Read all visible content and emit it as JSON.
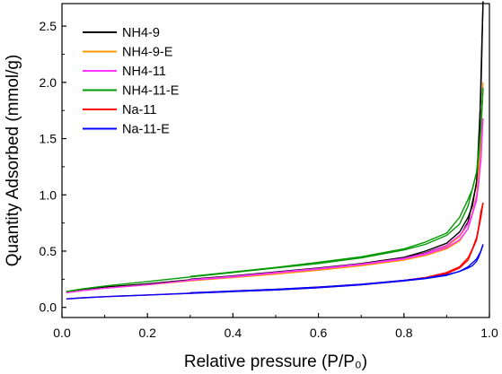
{
  "chart_data": {
    "type": "line",
    "title": "",
    "xlabel": "Relative pressure (P/P₀)",
    "ylabel": "Quantity Adsorbed (mmol/g)",
    "xlim": [
      0.0,
      1.0
    ],
    "ylim": [
      -0.09,
      2.7
    ],
    "xticks": [
      0.0,
      0.2,
      0.4,
      0.6,
      0.8,
      1.0
    ],
    "xtick_labels": [
      "0.0",
      "0.2",
      "0.4",
      "0.6",
      "0.8",
      "1.0"
    ],
    "yticks": [
      0.0,
      0.5,
      1.0,
      1.5,
      2.0,
      2.5
    ],
    "ytick_labels": [
      "0.0",
      "0.5",
      "1.0",
      "1.5",
      "2.0",
      "2.5"
    ],
    "grid": false,
    "legend_position": "top-left",
    "series": [
      {
        "name": "NH4-9",
        "color": "#000000",
        "adsorption": [
          [
            0.01,
            0.14
          ],
          [
            0.05,
            0.16
          ],
          [
            0.1,
            0.18
          ],
          [
            0.2,
            0.21
          ],
          [
            0.3,
            0.245
          ],
          [
            0.4,
            0.275
          ],
          [
            0.5,
            0.31
          ],
          [
            0.6,
            0.345
          ],
          [
            0.7,
            0.385
          ],
          [
            0.8,
            0.44
          ],
          [
            0.85,
            0.485
          ],
          [
            0.9,
            0.55
          ],
          [
            0.93,
            0.63
          ],
          [
            0.95,
            0.76
          ],
          [
            0.97,
            1.1
          ],
          [
            0.98,
            1.9
          ],
          [
            0.985,
            2.72
          ]
        ],
        "desorption": [
          [
            0.985,
            2.72
          ],
          [
            0.982,
            2.3
          ],
          [
            0.978,
            1.7
          ],
          [
            0.974,
            1.3
          ],
          [
            0.97,
            1.12
          ],
          [
            0.96,
            0.9
          ],
          [
            0.95,
            0.8
          ],
          [
            0.93,
            0.67
          ],
          [
            0.9,
            0.57
          ],
          [
            0.85,
            0.5
          ],
          [
            0.8,
            0.445
          ],
          [
            0.7,
            0.39
          ],
          [
            0.6,
            0.35
          ],
          [
            0.5,
            0.315
          ],
          [
            0.4,
            0.28
          ],
          [
            0.3,
            0.25
          ]
        ]
      },
      {
        "name": "NH4-9-E",
        "color": "#ff9900",
        "adsorption": [
          [
            0.01,
            0.13
          ],
          [
            0.05,
            0.15
          ],
          [
            0.1,
            0.17
          ],
          [
            0.2,
            0.2
          ],
          [
            0.3,
            0.235
          ],
          [
            0.4,
            0.265
          ],
          [
            0.5,
            0.295
          ],
          [
            0.6,
            0.33
          ],
          [
            0.7,
            0.37
          ],
          [
            0.8,
            0.42
          ],
          [
            0.85,
            0.46
          ],
          [
            0.9,
            0.52
          ],
          [
            0.93,
            0.59
          ],
          [
            0.95,
            0.7
          ],
          [
            0.97,
            0.98
          ],
          [
            0.98,
            1.5
          ],
          [
            0.985,
            2.0
          ]
        ],
        "desorption": [
          [
            0.985,
            2.0
          ],
          [
            0.98,
            1.55
          ],
          [
            0.975,
            1.2
          ],
          [
            0.97,
            1.0
          ],
          [
            0.96,
            0.84
          ],
          [
            0.95,
            0.74
          ],
          [
            0.93,
            0.63
          ],
          [
            0.9,
            0.54
          ],
          [
            0.85,
            0.47
          ],
          [
            0.8,
            0.425
          ],
          [
            0.7,
            0.375
          ],
          [
            0.6,
            0.335
          ],
          [
            0.5,
            0.3
          ],
          [
            0.4,
            0.27
          ],
          [
            0.3,
            0.24
          ]
        ]
      },
      {
        "name": "NH4-11",
        "color": "#ff33ff",
        "adsorption": [
          [
            0.01,
            0.13
          ],
          [
            0.05,
            0.15
          ],
          [
            0.1,
            0.17
          ],
          [
            0.2,
            0.2
          ],
          [
            0.3,
            0.24
          ],
          [
            0.4,
            0.27
          ],
          [
            0.5,
            0.305
          ],
          [
            0.6,
            0.34
          ],
          [
            0.7,
            0.38
          ],
          [
            0.8,
            0.43
          ],
          [
            0.85,
            0.47
          ],
          [
            0.9,
            0.53
          ],
          [
            0.93,
            0.6
          ],
          [
            0.95,
            0.7
          ],
          [
            0.97,
            0.95
          ],
          [
            0.98,
            1.3
          ],
          [
            0.985,
            1.68
          ]
        ],
        "desorption": [
          [
            0.985,
            1.68
          ],
          [
            0.98,
            1.35
          ],
          [
            0.975,
            1.1
          ],
          [
            0.97,
            0.98
          ],
          [
            0.96,
            0.83
          ],
          [
            0.95,
            0.74
          ],
          [
            0.93,
            0.64
          ],
          [
            0.9,
            0.55
          ],
          [
            0.85,
            0.48
          ],
          [
            0.8,
            0.435
          ],
          [
            0.7,
            0.385
          ],
          [
            0.6,
            0.345
          ],
          [
            0.5,
            0.31
          ],
          [
            0.4,
            0.275
          ],
          [
            0.3,
            0.245
          ]
        ]
      },
      {
        "name": "NH4-11-E",
        "color": "#009900",
        "adsorption": [
          [
            0.01,
            0.14
          ],
          [
            0.05,
            0.165
          ],
          [
            0.1,
            0.19
          ],
          [
            0.2,
            0.23
          ],
          [
            0.3,
            0.27
          ],
          [
            0.4,
            0.31
          ],
          [
            0.5,
            0.35
          ],
          [
            0.6,
            0.39
          ],
          [
            0.7,
            0.44
          ],
          [
            0.8,
            0.51
          ],
          [
            0.85,
            0.56
          ],
          [
            0.9,
            0.64
          ],
          [
            0.93,
            0.74
          ],
          [
            0.95,
            0.9
          ],
          [
            0.97,
            1.2
          ],
          [
            0.98,
            1.6
          ],
          [
            0.985,
            1.95
          ]
        ],
        "desorption": [
          [
            0.985,
            1.95
          ],
          [
            0.98,
            1.6
          ],
          [
            0.975,
            1.35
          ],
          [
            0.97,
            1.2
          ],
          [
            0.96,
            1.05
          ],
          [
            0.95,
            0.96
          ],
          [
            0.93,
            0.8
          ],
          [
            0.9,
            0.66
          ],
          [
            0.85,
            0.58
          ],
          [
            0.8,
            0.52
          ],
          [
            0.7,
            0.45
          ],
          [
            0.6,
            0.4
          ],
          [
            0.5,
            0.355
          ],
          [
            0.4,
            0.315
          ],
          [
            0.3,
            0.275
          ]
        ]
      },
      {
        "name": "Na-11",
        "color": "#ff0000",
        "adsorption": [
          [
            0.01,
            0.075
          ],
          [
            0.05,
            0.085
          ],
          [
            0.1,
            0.095
          ],
          [
            0.2,
            0.11
          ],
          [
            0.3,
            0.125
          ],
          [
            0.4,
            0.14
          ],
          [
            0.5,
            0.155
          ],
          [
            0.6,
            0.175
          ],
          [
            0.7,
            0.2
          ],
          [
            0.8,
            0.235
          ],
          [
            0.85,
            0.26
          ],
          [
            0.9,
            0.3
          ],
          [
            0.93,
            0.35
          ],
          [
            0.95,
            0.42
          ],
          [
            0.97,
            0.6
          ],
          [
            0.98,
            0.8
          ],
          [
            0.985,
            0.93
          ]
        ],
        "desorption": [
          [
            0.985,
            0.93
          ],
          [
            0.98,
            0.85
          ],
          [
            0.975,
            0.72
          ],
          [
            0.97,
            0.62
          ],
          [
            0.96,
            0.52
          ],
          [
            0.95,
            0.44
          ],
          [
            0.93,
            0.36
          ],
          [
            0.9,
            0.31
          ],
          [
            0.85,
            0.265
          ],
          [
            0.8,
            0.24
          ],
          [
            0.7,
            0.205
          ],
          [
            0.6,
            0.18
          ],
          [
            0.5,
            0.16
          ],
          [
            0.4,
            0.145
          ],
          [
            0.3,
            0.13
          ]
        ]
      },
      {
        "name": "Na-11-E",
        "color": "#0000ff",
        "adsorption": [
          [
            0.01,
            0.075
          ],
          [
            0.05,
            0.085
          ],
          [
            0.1,
            0.095
          ],
          [
            0.2,
            0.11
          ],
          [
            0.3,
            0.125
          ],
          [
            0.4,
            0.14
          ],
          [
            0.5,
            0.155
          ],
          [
            0.6,
            0.175
          ],
          [
            0.7,
            0.2
          ],
          [
            0.8,
            0.235
          ],
          [
            0.85,
            0.255
          ],
          [
            0.9,
            0.285
          ],
          [
            0.93,
            0.32
          ],
          [
            0.95,
            0.36
          ],
          [
            0.97,
            0.43
          ],
          [
            0.98,
            0.5
          ],
          [
            0.985,
            0.56
          ]
        ],
        "desorption": [
          [
            0.985,
            0.56
          ],
          [
            0.98,
            0.5
          ],
          [
            0.975,
            0.45
          ],
          [
            0.97,
            0.41
          ],
          [
            0.96,
            0.37
          ],
          [
            0.95,
            0.35
          ],
          [
            0.93,
            0.32
          ],
          [
            0.9,
            0.29
          ],
          [
            0.85,
            0.26
          ],
          [
            0.8,
            0.24
          ],
          [
            0.7,
            0.205
          ],
          [
            0.6,
            0.18
          ],
          [
            0.5,
            0.16
          ],
          [
            0.4,
            0.145
          ],
          [
            0.3,
            0.13
          ]
        ]
      }
    ]
  }
}
